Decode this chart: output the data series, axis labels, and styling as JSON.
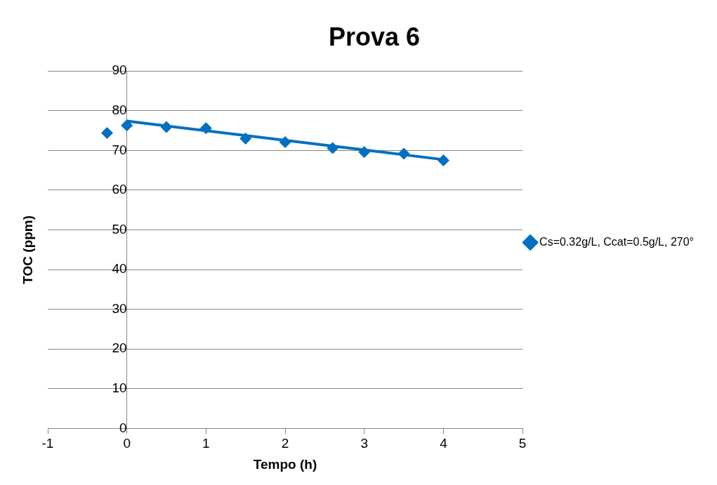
{
  "chart_data": {
    "type": "scatter",
    "title": "Prova 6",
    "xlabel": "Tempo (h)",
    "ylabel": "TOC (ppm)",
    "xlim": [
      -1,
      5
    ],
    "xticks": [
      -1,
      0,
      1,
      2,
      3,
      4,
      5
    ],
    "ylim": [
      0,
      90
    ],
    "yticks": [
      0,
      10,
      20,
      30,
      40,
      50,
      60,
      70,
      80,
      90
    ],
    "grid": "y",
    "legend": "right",
    "marker": "diamond",
    "series": [
      {
        "name": "Cs=0.32g/L, Ccat=0.5g/L, 270°",
        "color": "#0070c0",
        "type": "scatter",
        "x": [
          -0.25,
          0,
          0.5,
          1,
          1.5,
          2,
          2.6,
          3,
          3.5,
          4
        ],
        "values": [
          74.4,
          76.3,
          75.9,
          75.6,
          73.0,
          72.1,
          70.6,
          69.6,
          69.2,
          67.5
        ]
      },
      {
        "color": "#0070c0",
        "type": "line",
        "marker": "none",
        "x": [
          0,
          4
        ],
        "values": [
          77.4,
          67.7
        ]
      }
    ]
  }
}
